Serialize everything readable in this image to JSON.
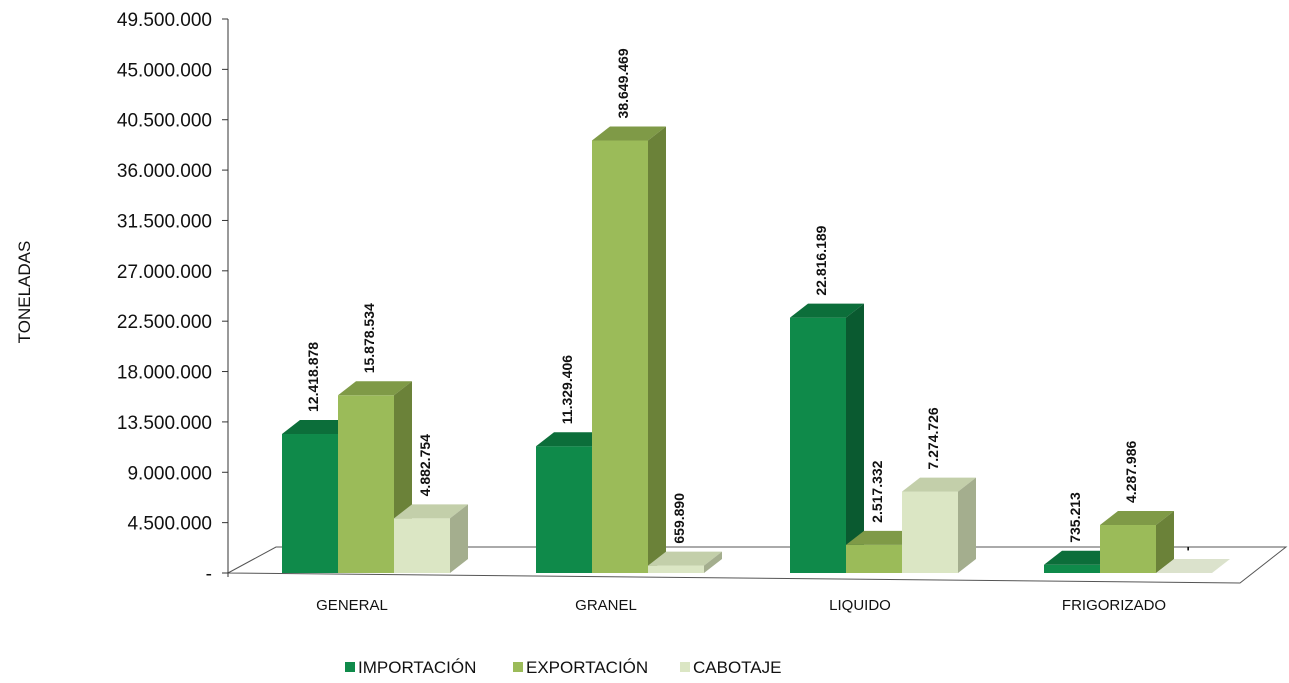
{
  "chart_data": {
    "type": "bar",
    "style": "3d-clustered-column",
    "categories": [
      "GENERAL",
      "GRANEL",
      "LIQUIDO",
      "FRIGORIZADO"
    ],
    "ylabel": "TONELADAS",
    "ylim": [
      0,
      49500000
    ],
    "y_ticks": [
      "-",
      "4.500.000",
      "9.000.000",
      "13.500.000",
      "18.000.000",
      "22.500.000",
      "27.000.000",
      "31.500.000",
      "36.000.000",
      "40.500.000",
      "45.000.000",
      "49.500.000"
    ],
    "y_tick_values": [
      0,
      4500000,
      9000000,
      13500000,
      18000000,
      22500000,
      27000000,
      31500000,
      36000000,
      40500000,
      45000000,
      49500000
    ],
    "legend_position": "bottom",
    "series": [
      {
        "name": "IMPORTACIÓN",
        "values": [
          12418878,
          11329406,
          22816189,
          735213
        ],
        "labels": [
          "12.418.878",
          "11.329.406",
          "22.816.189",
          "735.213"
        ],
        "color": "#0f8a4a",
        "top_color": "#0c6e3a",
        "side_color": "#0a5a30"
      },
      {
        "name": "EXPORTACIÓN",
        "values": [
          15878534,
          38649469,
          2517332,
          4287986
        ],
        "labels": [
          "15.878.534",
          "38.649.469",
          "2.517.332",
          "4.287.986"
        ],
        "color": "#9bbb59",
        "top_color": "#7f9a47",
        "side_color": "#6b8239"
      },
      {
        "name": "CABOTAJE",
        "values": [
          4882754,
          659890,
          7274726,
          0
        ],
        "labels": [
          "4.882.754",
          "659.890",
          "7.274.726",
          "-"
        ],
        "color": "#dbe6c4",
        "top_color": "#c3cfaa",
        "side_color": "#a4ae8e"
      }
    ]
  }
}
